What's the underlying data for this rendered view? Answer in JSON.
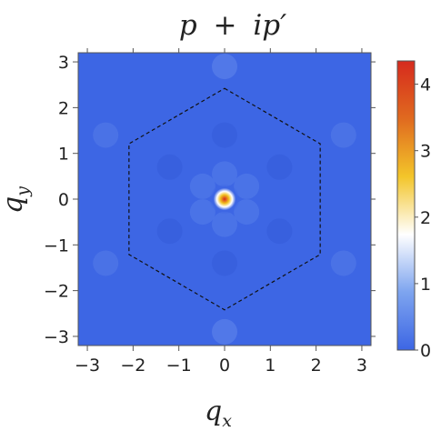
{
  "title": {
    "main": "p",
    "op": "+",
    "rest": "ip",
    "prime": "′"
  },
  "colors": {
    "background": "#3d66e4",
    "peak_outer": "#3d66e4",
    "peak_ring": "#ffffff",
    "peak_mid": "#f0c020",
    "peak_core": "#d62a1e",
    "frame": "#555555",
    "hexagon": "#111111"
  },
  "chart_data": {
    "type": "heatmap",
    "xlabel": {
      "base": "q",
      "sub": "x"
    },
    "ylabel": {
      "base": "q",
      "sub": "y"
    },
    "xlim": [
      -3.2,
      3.2
    ],
    "ylim": [
      -3.2,
      3.2
    ],
    "xticks": [
      -3,
      -2,
      -1,
      0,
      1,
      2,
      3
    ],
    "yticks": [
      -3,
      -2,
      -1,
      0,
      1,
      2,
      3
    ],
    "xtick_labels": [
      "−3",
      "−2",
      "−1",
      "0",
      "1",
      "2",
      "3"
    ],
    "ytick_labels": [
      "−3",
      "−2",
      "−1",
      "0",
      "1",
      "2",
      "3"
    ],
    "peak": {
      "x": 0,
      "y": 0,
      "value": 4.3
    },
    "brillouin_zone": {
      "shape": "hexagon",
      "style": "dashed",
      "vertices": [
        [
          0,
          2.42
        ],
        [
          2.09,
          1.21
        ],
        [
          2.09,
          -1.21
        ],
        [
          0,
          -2.42
        ],
        [
          -2.09,
          -1.21
        ],
        [
          -2.09,
          1.21
        ]
      ]
    },
    "colorbar": {
      "min": 0,
      "max": 4.35,
      "ticks": [
        0,
        1,
        2,
        3,
        4
      ],
      "tick_labels": [
        "0",
        "1",
        "2",
        "3",
        "4"
      ],
      "colormap": [
        "#3d66e4",
        "#7da4ef",
        "#ffffff",
        "#f3c52a",
        "#e06a1f",
        "#d62a1e"
      ]
    }
  }
}
